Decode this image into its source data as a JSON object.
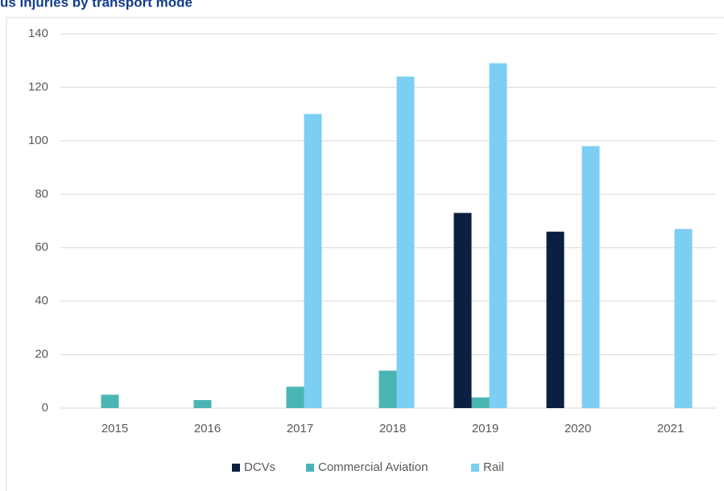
{
  "chart_data": {
    "type": "bar",
    "title": "us injuries by transport mode",
    "categories": [
      "2015",
      "2016",
      "2017",
      "2018",
      "2019",
      "2020",
      "2021"
    ],
    "series": [
      {
        "name": "DCVs",
        "color": "#0b1f41",
        "values": [
          null,
          null,
          null,
          null,
          73,
          66,
          null
        ]
      },
      {
        "name": "Commercial Aviation",
        "color": "#4bb5b3",
        "values": [
          5,
          3,
          8,
          14,
          4,
          null,
          null
        ]
      },
      {
        "name": "Rail",
        "color": "#7ccff2",
        "values": [
          null,
          null,
          110,
          124,
          129,
          98,
          67
        ]
      }
    ],
    "ylim": [
      0,
      140
    ],
    "yticks": [
      0,
      20,
      40,
      60,
      80,
      100,
      120,
      140
    ],
    "grid": true,
    "legend": "bottom"
  }
}
